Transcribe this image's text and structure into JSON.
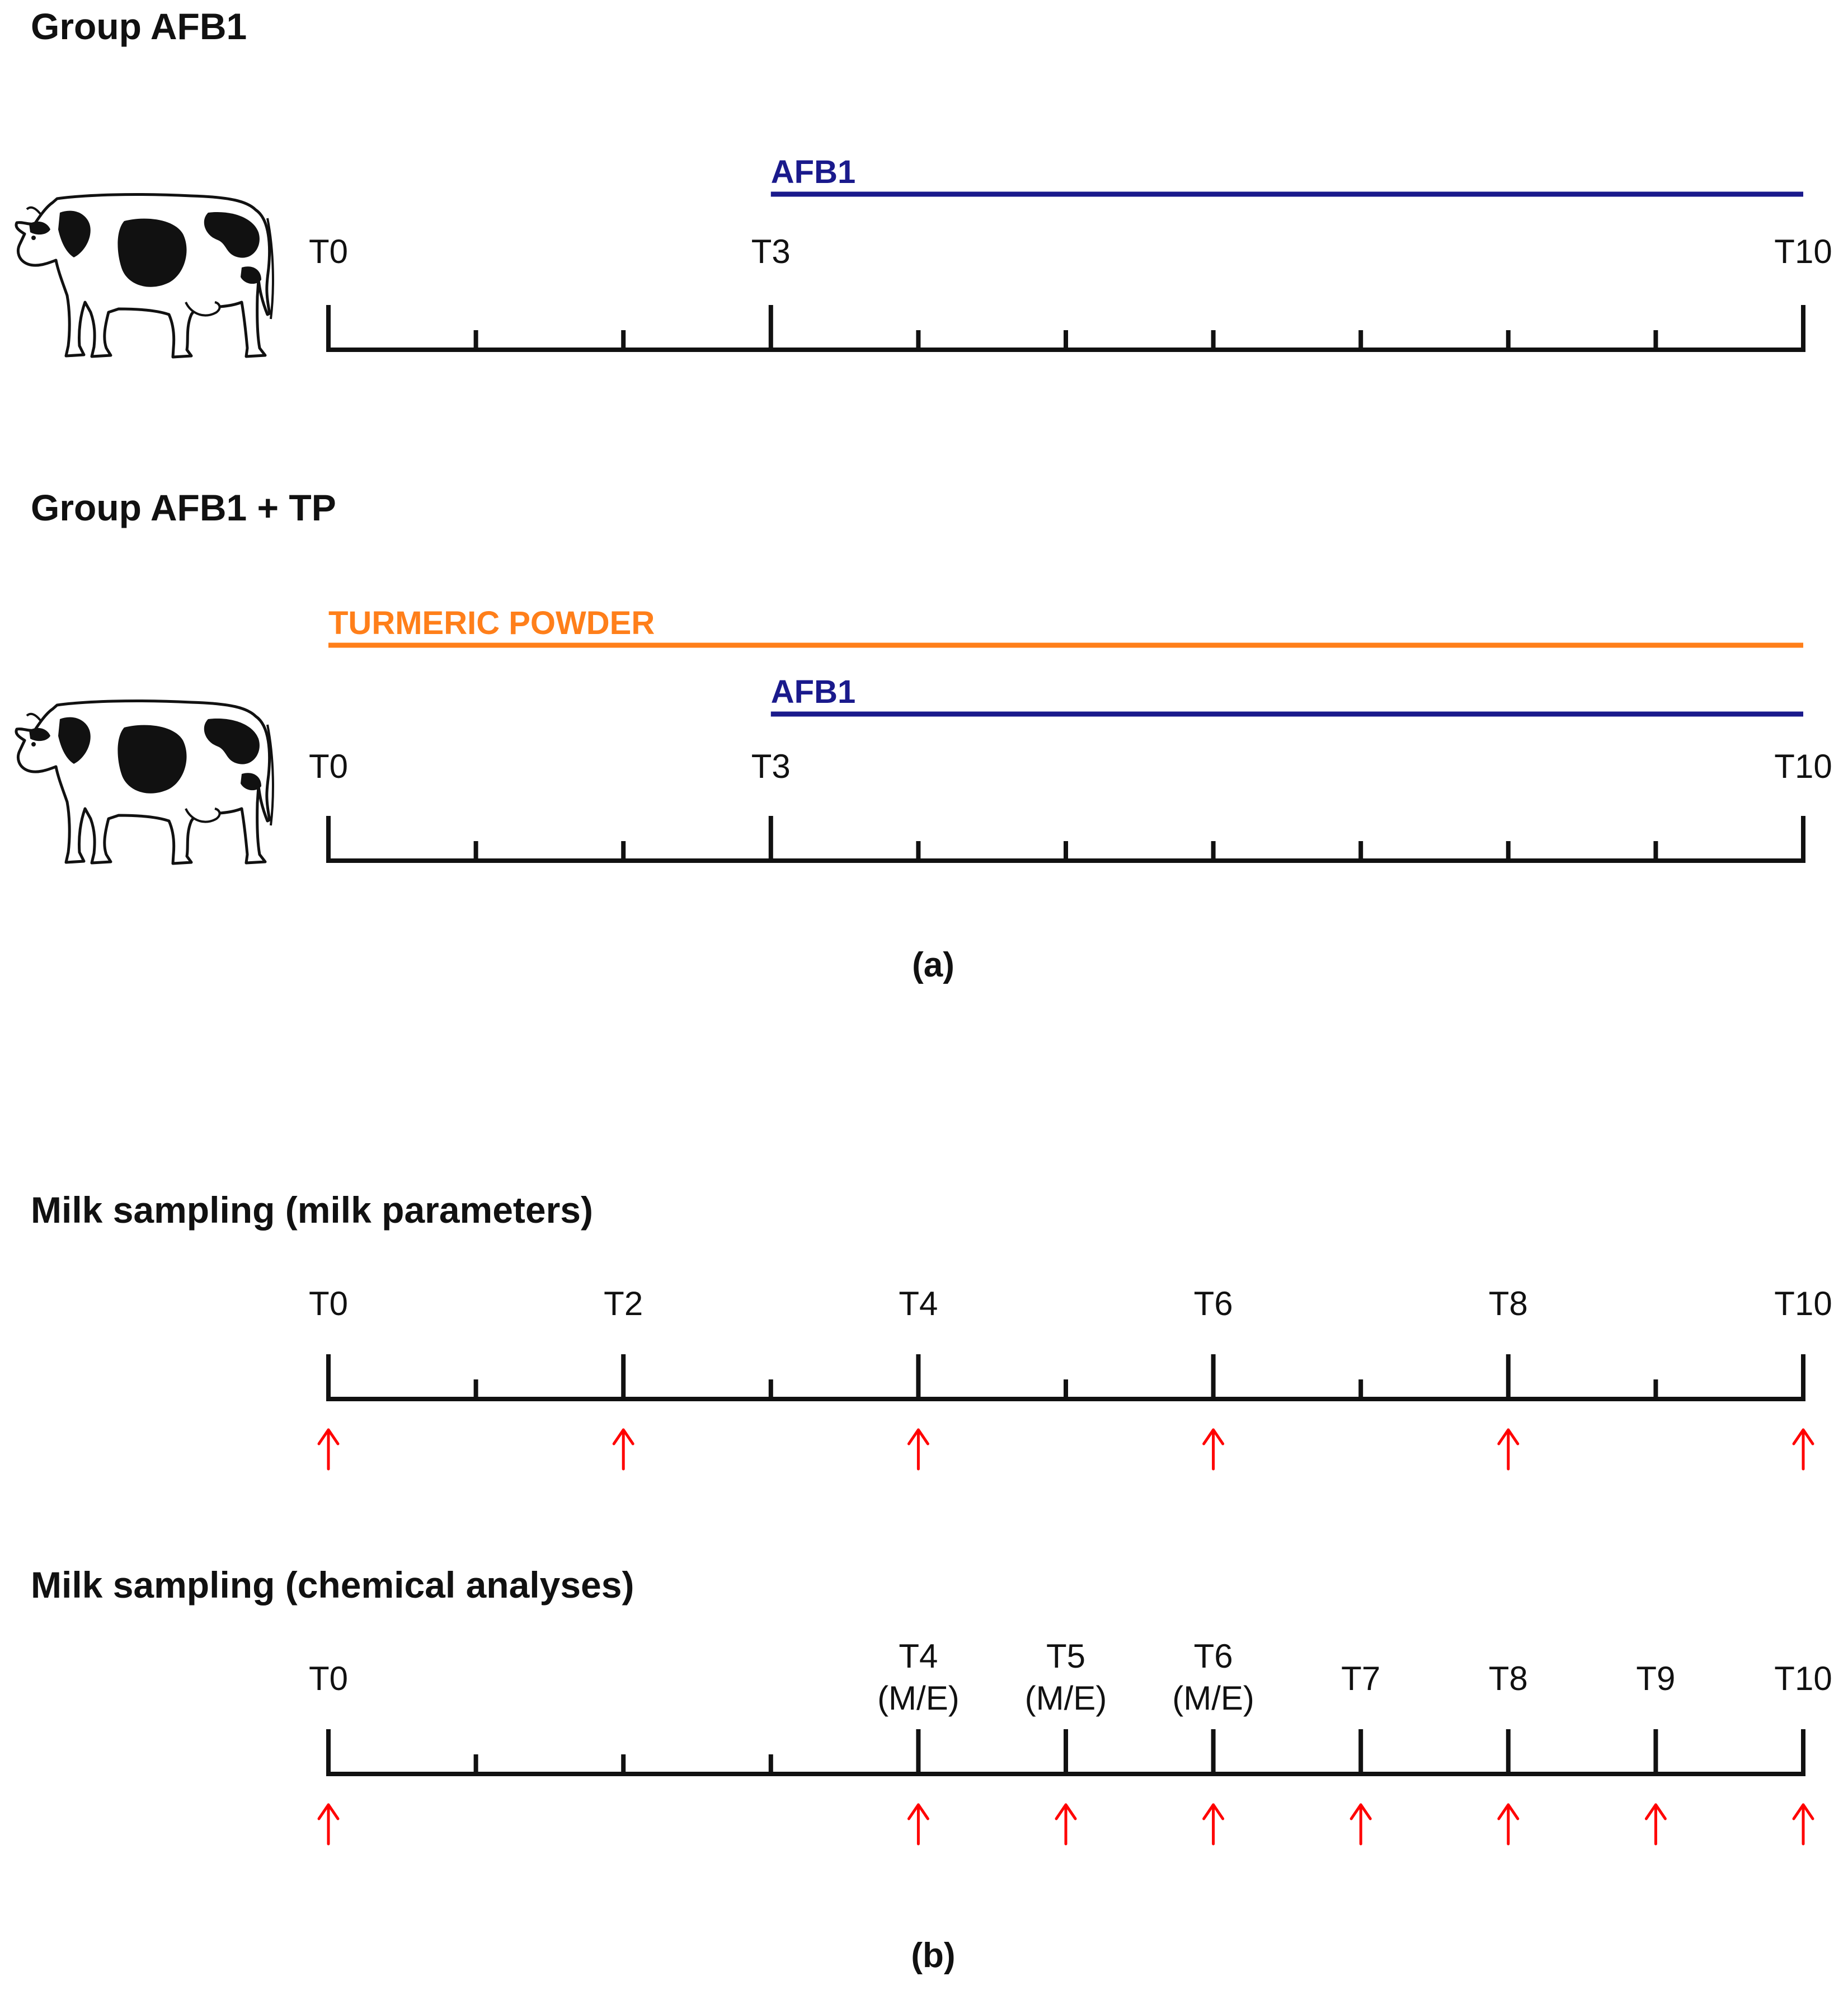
{
  "panel_a": {
    "groups": [
      {
        "heading": "Group AFB1",
        "ticks": [
          0,
          1,
          2,
          3,
          4,
          5,
          6,
          7,
          8,
          9,
          10
        ],
        "major_ticks": [
          0,
          3,
          10
        ],
        "labels": [
          {
            "t": 0,
            "text": "T0"
          },
          {
            "t": 3,
            "text": "T3"
          },
          {
            "t": 10,
            "text": "T10"
          }
        ],
        "bars": [
          {
            "label": "AFB1",
            "start": 3,
            "end": 10,
            "color": "#1a1a8c"
          }
        ]
      },
      {
        "heading": "Group AFB1 + TP",
        "ticks": [
          0,
          1,
          2,
          3,
          4,
          5,
          6,
          7,
          8,
          9,
          10
        ],
        "major_ticks": [
          0,
          3,
          10
        ],
        "labels": [
          {
            "t": 0,
            "text": "T0"
          },
          {
            "t": 3,
            "text": "T3"
          },
          {
            "t": 10,
            "text": "T10"
          }
        ],
        "bars": [
          {
            "label": "TURMERIC POWDER",
            "start": 0,
            "end": 10,
            "color": "#ff7f1a"
          },
          {
            "label": "AFB1",
            "start": 3,
            "end": 10,
            "color": "#1a1a8c"
          }
        ]
      }
    ],
    "caption": "(a)"
  },
  "panel_b": {
    "timelines": [
      {
        "heading": "Milk sampling (milk parameters)",
        "ticks": [
          0,
          1,
          2,
          3,
          4,
          5,
          6,
          7,
          8,
          9,
          10
        ],
        "major_ticks": [
          0,
          2,
          4,
          6,
          8,
          10
        ],
        "labels": [
          {
            "t": 0,
            "text": "T0"
          },
          {
            "t": 2,
            "text": "T2"
          },
          {
            "t": 4,
            "text": "T4"
          },
          {
            "t": 6,
            "text": "T6"
          },
          {
            "t": 8,
            "text": "T8"
          },
          {
            "t": 10,
            "text": "T10"
          }
        ],
        "arrows": [
          0,
          2,
          4,
          6,
          8,
          10
        ]
      },
      {
        "heading": "Milk sampling (chemical analyses)",
        "ticks": [
          0,
          1,
          2,
          3,
          4,
          5,
          6,
          7,
          8,
          9,
          10
        ],
        "major_ticks": [
          0,
          4,
          5,
          6,
          7,
          8,
          9,
          10
        ],
        "labels": [
          {
            "t": 0,
            "text": "T0"
          },
          {
            "t": 4,
            "text": "T4",
            "sub": "(M/E)"
          },
          {
            "t": 5,
            "text": "T5",
            "sub": "(M/E)"
          },
          {
            "t": 6,
            "text": "T6",
            "sub": "(M/E)"
          },
          {
            "t": 7,
            "text": "T7"
          },
          {
            "t": 8,
            "text": "T8"
          },
          {
            "t": 9,
            "text": "T9"
          },
          {
            "t": 10,
            "text": "T10"
          }
        ],
        "arrows": [
          0,
          4,
          5,
          6,
          7,
          8,
          9,
          10
        ]
      }
    ],
    "caption": "(b)"
  },
  "colors": {
    "afb1": "#1a1a8c",
    "turmeric": "#ff7f1a",
    "arrow": "#ff0000",
    "axis": "#111111"
  },
  "icons": [
    "cow-icon"
  ]
}
